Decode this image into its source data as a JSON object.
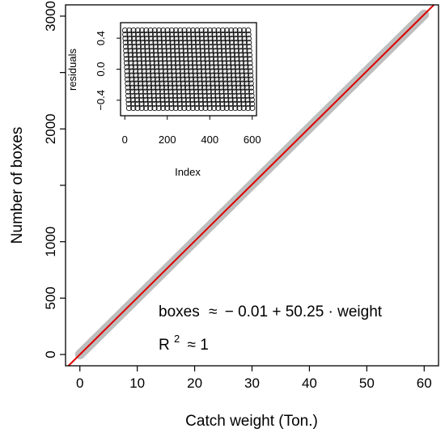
{
  "chart_data": [
    {
      "type": "scatter",
      "xlabel": "Catch weight (Ton.)",
      "ylabel": "Number of boxes",
      "xlim": [
        -2.5,
        62.5
      ],
      "ylim": [
        -100,
        3100
      ],
      "x_ticks": [
        0,
        10,
        20,
        30,
        40,
        50,
        60
      ],
      "y_ticks": [
        0,
        500,
        1000,
        1500,
        2000,
        2500,
        3000
      ],
      "y_tick_labels": [
        "0",
        "500",
        "1000",
        "",
        "2000",
        "",
        "3000"
      ],
      "point_color": "#bebebe",
      "points_range": {
        "x": [
          0,
          60
        ],
        "y": [
          0,
          3015
        ]
      },
      "fit_line": {
        "intercept": -0.01,
        "slope": 50.25,
        "color": "#dd0000"
      },
      "annotations": {
        "equation_lhs": "boxes",
        "equation_approx": "≈",
        "equation_rhs": "− 0.01 + 50.25 · weight",
        "r2_R": "R",
        "r2_sup": "2",
        "r2_rest": "≈ 1"
      }
    },
    {
      "type": "scatter",
      "title": "",
      "xlabel": "Index",
      "ylabel": "residuals",
      "xlim": [
        -20,
        620
      ],
      "ylim": [
        -0.6,
        0.6
      ],
      "x_ticks": [
        0,
        200,
        400,
        600
      ],
      "y_ticks": [
        -0.4,
        0.0,
        0.4
      ],
      "y_tick_labels": [
        "−0.4",
        "0.0",
        "0.4"
      ],
      "n_points": 600,
      "pattern": "sawtooth",
      "period": 20,
      "residual_range": [
        -0.5,
        0.5
      ],
      "point_style": "open-circle"
    }
  ]
}
